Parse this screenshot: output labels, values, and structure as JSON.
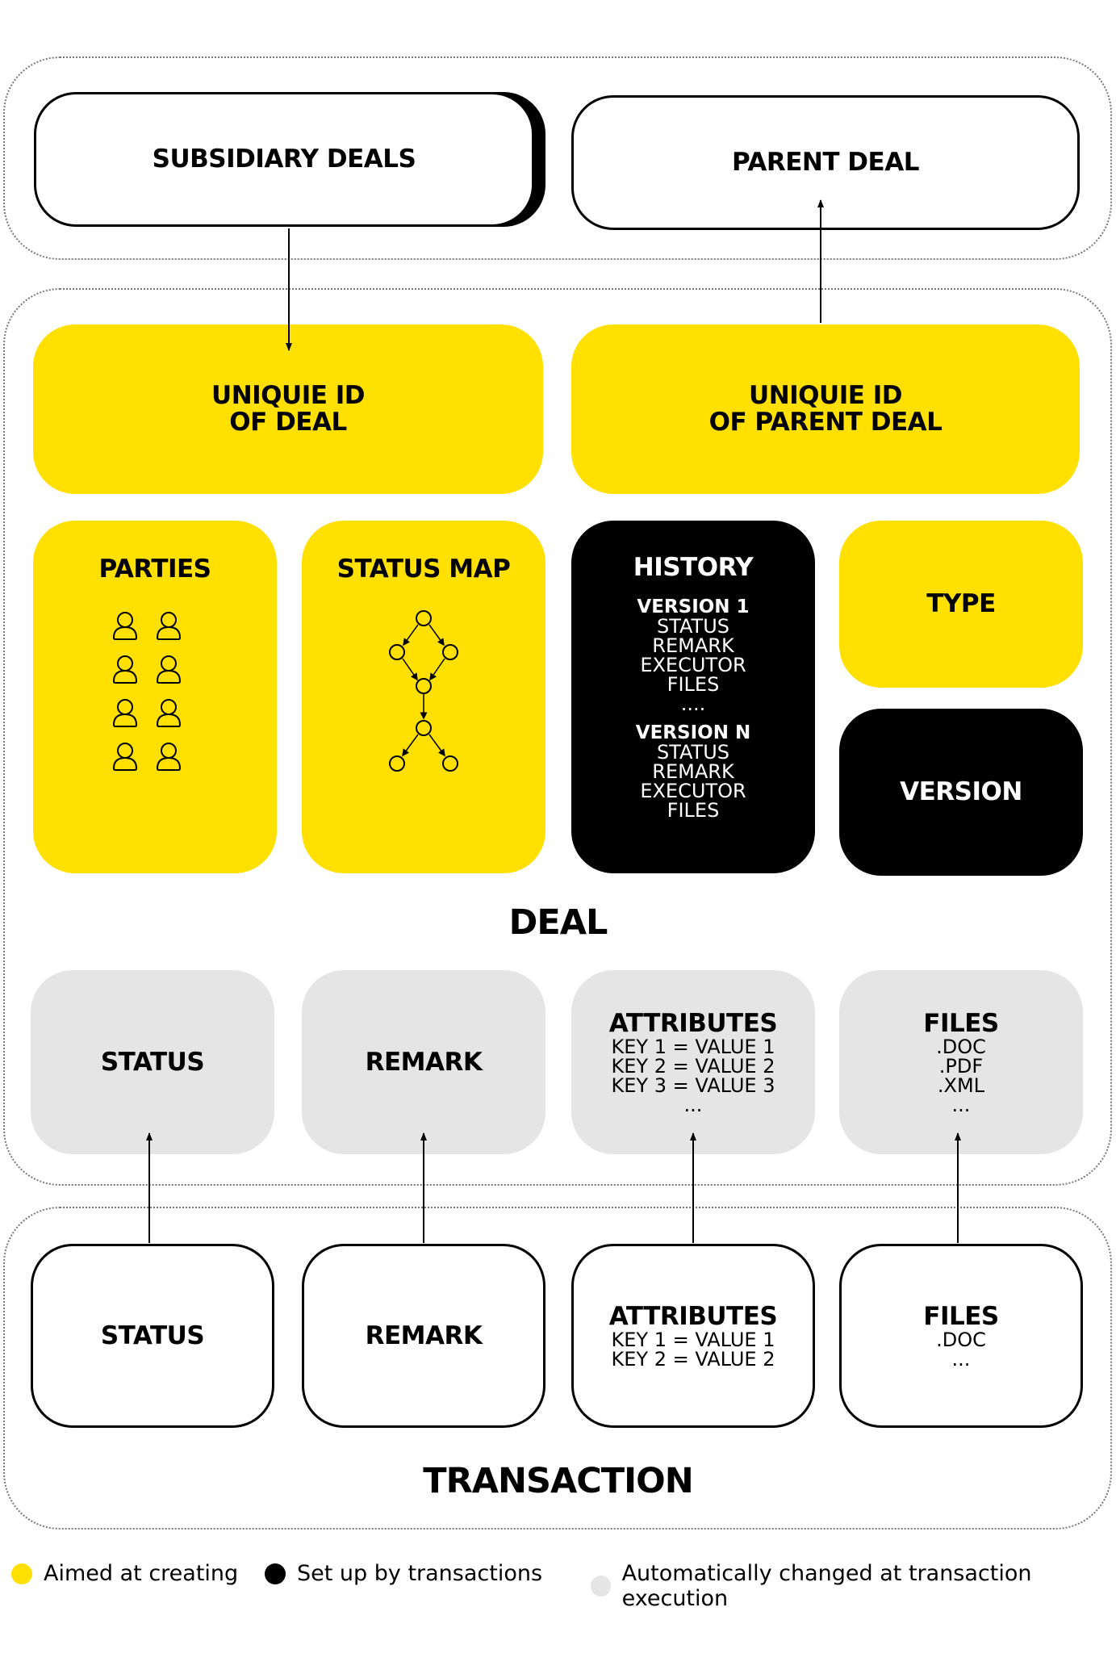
{
  "colors": {
    "yellow": "#FFE000",
    "black": "#000000",
    "grey": "#E5E5E5"
  },
  "top": {
    "subsidiary_deals": "SUBSIDIARY DEALS",
    "parent_deal": "PARENT DEAL"
  },
  "deal": {
    "label": "DEAL",
    "unique_id_deal": "UNIQUIE ID\nOF DEAL",
    "unique_id_parent": "UNIQUIE ID\nOF PARENT DEAL",
    "parties": "PARTIES",
    "parties_icon": "people-icon",
    "status_map": "STATUS MAP",
    "status_map_icon": "state-graph-icon",
    "history": {
      "title": "HISTORY",
      "v1_label": "VERSION 1",
      "v1_items": "STATUS\nREMARK\nEXECUTOR\nFILES",
      "ellipsis": "....",
      "vn_label": "VERSION N",
      "vn_items": "STATUS\nREMARK\nEXECUTOR\nFILES"
    },
    "type": "TYPE",
    "version": "VERSION",
    "status": "STATUS",
    "remark": "REMARK",
    "attributes": {
      "title": "ATTRIBUTES",
      "items": "KEY 1 = VALUE 1\nKEY 2 = VALUE 2\nKEY 3 = VALUE 3\n..."
    },
    "files": {
      "title": "FILES",
      "items": ".DOC\n.PDF\n.XML\n..."
    }
  },
  "transaction": {
    "label": "TRANSACTION",
    "status": "STATUS",
    "remark": "REMARK",
    "attributes": {
      "title": "ATTRIBUTES",
      "items": "KEY 1 = VALUE 1\nKEY 2 = VALUE 2"
    },
    "files": {
      "title": "FILES",
      "items": ".DOC\n..."
    }
  },
  "legend": {
    "yellow_label": "Aimed at creating",
    "black_label": "Set up by transactions",
    "grey_label": "Automatically changed at transaction execution"
  }
}
